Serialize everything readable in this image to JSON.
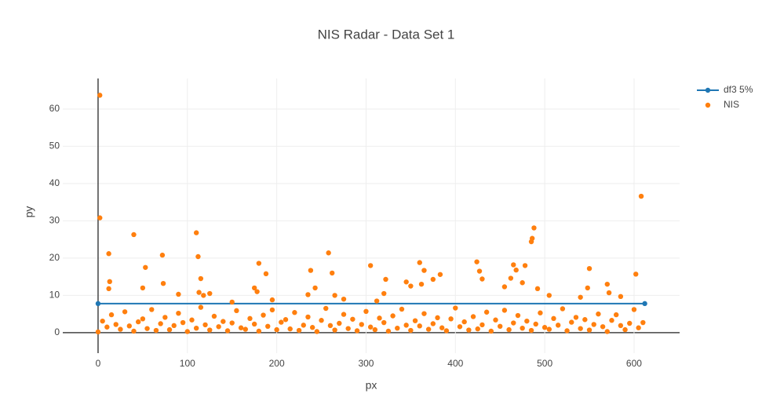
{
  "chart_data": {
    "type": "scatter",
    "title": "NIS Radar - Data Set 1",
    "x_label": "px",
    "y_label": "py",
    "xlim": [
      -39.5,
      651
    ],
    "ylim": [
      -5.5,
      68.2
    ],
    "xticks": [
      0,
      100,
      200,
      300,
      400,
      500,
      600
    ],
    "yticks": [
      0,
      10,
      20,
      30,
      40,
      50,
      60
    ],
    "grid": true,
    "legend": "top-right",
    "series": [
      {
        "name": "df3 5%",
        "color": "#1f77b4",
        "mode": "lines+markers",
        "x": [
          0,
          612
        ],
        "values": [
          7.8,
          7.8
        ]
      },
      {
        "name": "NIS",
        "color": "#ff7f0e",
        "mode": "markers",
        "x": [
          0,
          5,
          10,
          15,
          20,
          25,
          30,
          35,
          40,
          45,
          50,
          55,
          60,
          65,
          70,
          75,
          80,
          85,
          90,
          95,
          100,
          105,
          110,
          115,
          120,
          125,
          130,
          135,
          140,
          145,
          150,
          155,
          160,
          165,
          170,
          175,
          180,
          185,
          190,
          195,
          200,
          205,
          210,
          215,
          220,
          225,
          230,
          235,
          240,
          245,
          250,
          255,
          260,
          265,
          270,
          275,
          280,
          285,
          290,
          295,
          300,
          305,
          310,
          315,
          320,
          325,
          330,
          335,
          340,
          345,
          350,
          355,
          360,
          365,
          370,
          375,
          380,
          385,
          390,
          395,
          400,
          405,
          410,
          415,
          420,
          425,
          430,
          435,
          440,
          445,
          450,
          455,
          460,
          465,
          470,
          475,
          480,
          485,
          490,
          495,
          500,
          505,
          510,
          515,
          520,
          525,
          530,
          535,
          540,
          545,
          550,
          555,
          560,
          565,
          570,
          575,
          580,
          585,
          590,
          595,
          600,
          605,
          610,
          2,
          2,
          12,
          13,
          12,
          40,
          50,
          53,
          72,
          73,
          90,
          110,
          112,
          115,
          113,
          118,
          125,
          150,
          175,
          178,
          180,
          188,
          195,
          235,
          238,
          243,
          258,
          262,
          265,
          275,
          305,
          312,
          320,
          322,
          345,
          350,
          360,
          365,
          362,
          375,
          383,
          424,
          427,
          430,
          455,
          462,
          465,
          468,
          475,
          478,
          485,
          486,
          488,
          492,
          505,
          540,
          548,
          550,
          570,
          572,
          585,
          602,
          608
        ],
        "values": [
          0.2,
          3.1,
          1.5,
          4.8,
          2.2,
          0.9,
          5.6,
          1.8,
          0.4,
          2.9,
          3.7,
          1.1,
          6.2,
          0.6,
          2.4,
          4.1,
          0.8,
          1.9,
          5.2,
          2.7,
          0.3,
          3.4,
          1.2,
          6.8,
          2.1,
          0.7,
          4.4,
          1.6,
          3.0,
          0.5,
          2.6,
          5.9,
          1.3,
          0.9,
          3.8,
          2.3,
          0.4,
          4.7,
          1.7,
          6.1,
          0.8,
          2.8,
          3.5,
          1.0,
          5.4,
          0.6,
          2.0,
          4.2,
          1.4,
          0.3,
          3.3,
          6.5,
          1.9,
          0.7,
          2.5,
          4.9,
          1.1,
          3.6,
          0.5,
          2.2,
          5.7,
          1.5,
          0.8,
          3.9,
          2.7,
          0.4,
          4.5,
          1.2,
          6.3,
          2.0,
          0.6,
          3.2,
          1.8,
          5.1,
          0.9,
          2.4,
          4.0,
          1.3,
          0.5,
          3.7,
          6.6,
          1.6,
          2.9,
          0.7,
          4.3,
          1.0,
          2.1,
          5.5,
          0.4,
          3.4,
          1.7,
          6.0,
          0.8,
          2.6,
          4.6,
          1.2,
          3.1,
          0.6,
          2.3,
          5.3,
          1.4,
          0.9,
          3.8,
          2.0,
          6.4,
          0.5,
          2.8,
          4.1,
          1.1,
          3.5,
          0.7,
          2.2,
          5.0,
          1.6,
          0.3,
          3.3,
          4.8,
          1.9,
          0.8,
          2.5,
          6.2,
          1.3,
          2.7,
          63.7,
          30.8,
          21.2,
          13.7,
          11.8,
          26.3,
          12,
          17.5,
          20.8,
          13.2,
          10.3,
          26.8,
          20.4,
          14.5,
          10.8,
          10,
          10.5,
          8.2,
          12,
          11,
          18.6,
          15.8,
          8.8,
          10.2,
          16.7,
          12,
          21.4,
          16,
          10,
          9,
          18,
          8.5,
          10.5,
          14.3,
          13.6,
          12.5,
          18.8,
          16.7,
          13,
          14.3,
          15.6,
          19,
          16.5,
          14.4,
          12.3,
          14.6,
          18.2,
          16.8,
          13.4,
          18,
          24.4,
          25.3,
          28.1,
          11.8,
          10,
          9.5,
          12,
          17.2,
          13,
          10.7,
          9.7,
          15.7,
          36.6
        ]
      }
    ]
  }
}
